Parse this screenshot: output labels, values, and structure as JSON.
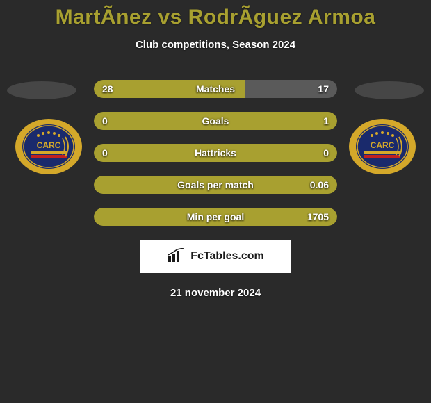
{
  "title": "MartÃnez vs RodrÃ­guez Armoa",
  "subtitle": "Club competitions, Season 2024",
  "date": "21 november 2024",
  "footer_brand": "FcTables.com",
  "colors": {
    "background": "#2a2a2a",
    "title": "#a8a030",
    "text": "#ffffff",
    "bar_olive": "#a8a030",
    "bar_gray": "#5a5a5a",
    "badge_bg": "#ffffff",
    "side_shape": "#464646",
    "club_blue": "#1a2a6c",
    "club_gold": "#d4a82a"
  },
  "stats": [
    {
      "label": "Matches",
      "left_value": "28",
      "right_value": "17",
      "left_num": 28,
      "right_num": 17,
      "left_width_pct": 62,
      "right_width_pct": 38,
      "left_color": "#a8a030",
      "right_color": "#5a5a5a"
    },
    {
      "label": "Goals",
      "left_value": "0",
      "right_value": "1",
      "left_num": 0,
      "right_num": 1,
      "full_color": "#a8a030"
    },
    {
      "label": "Hattricks",
      "left_value": "0",
      "right_value": "0",
      "left_num": 0,
      "right_num": 0,
      "full_color": "#a8a030"
    },
    {
      "label": "Goals per match",
      "left_value": "",
      "right_value": "0.06",
      "full_color": "#a8a030"
    },
    {
      "label": "Min per goal",
      "left_value": "",
      "right_value": "1705",
      "full_color": "#a8a030"
    }
  ]
}
